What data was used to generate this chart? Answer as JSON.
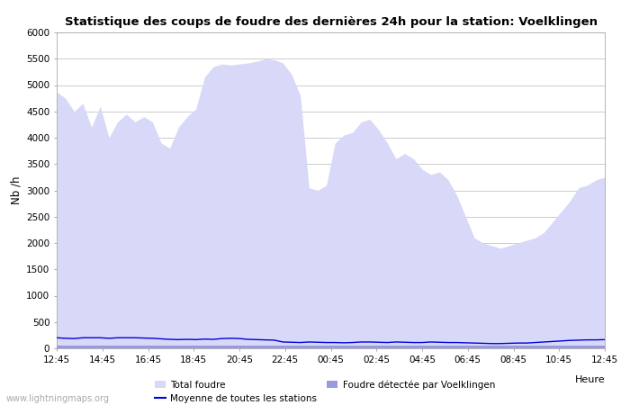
{
  "title": "Statistique des coups de foudre des dernières 24h pour la station: Voelklingen",
  "ylabel": "Nb /h",
  "xlabel": "Heure",
  "ylim": [
    0,
    6000
  ],
  "yticks": [
    0,
    500,
    1000,
    1500,
    2000,
    2500,
    3000,
    3500,
    4000,
    4500,
    5000,
    5500,
    6000
  ],
  "xtick_labels": [
    "12:45",
    "14:45",
    "16:45",
    "18:45",
    "20:45",
    "22:45",
    "00:45",
    "02:45",
    "04:45",
    "06:45",
    "08:45",
    "10:45",
    "12:45"
  ],
  "background_color": "#ffffff",
  "plot_bg_color": "#ffffff",
  "grid_color": "#cccccc",
  "fill_total_color": "#d8d8f8",
  "fill_voelk_color": "#9999dd",
  "line_mean_color": "#0000dd",
  "watermark": "www.lightningmaps.org",
  "legend_total": "Total foudre",
  "legend_mean": "Moyenne de toutes les stations",
  "legend_voelk": "Foudre détectée par Voelklingen",
  "total_foudre": [
    4870,
    4750,
    4500,
    4650,
    4200,
    4600,
    4000,
    4300,
    4450,
    4300,
    4400,
    4300,
    3900,
    3800,
    4200,
    4400,
    4550,
    5150,
    5350,
    5400,
    5380,
    5400,
    5420,
    5450,
    5500,
    5480,
    5420,
    5200,
    4800,
    3050,
    3000,
    3100,
    3900,
    4050,
    4100,
    4300,
    4350,
    4150,
    3900,
    3600,
    3700,
    3600,
    3400,
    3300,
    3350,
    3200,
    2900,
    2500,
    2100,
    2000,
    1950,
    1900,
    1950,
    2000,
    2050,
    2100,
    2200,
    2400,
    2600,
    2800,
    3050,
    3100,
    3200,
    3250
  ],
  "voelk_foudre": [
    50,
    50,
    50,
    50,
    50,
    50,
    50,
    50,
    50,
    50,
    50,
    50,
    50,
    50,
    50,
    50,
    50,
    50,
    50,
    50,
    50,
    50,
    50,
    50,
    50,
    50,
    50,
    50,
    50,
    50,
    50,
    50,
    50,
    50,
    50,
    50,
    50,
    50,
    50,
    50,
    50,
    50,
    50,
    50,
    50,
    50,
    50,
    50,
    50,
    50,
    50,
    50,
    50,
    50,
    50,
    50,
    50,
    50,
    50,
    50,
    50,
    50,
    50,
    50
  ],
  "mean_line": [
    200,
    190,
    185,
    200,
    200,
    200,
    190,
    200,
    200,
    200,
    195,
    190,
    180,
    170,
    165,
    170,
    165,
    175,
    170,
    185,
    190,
    185,
    170,
    165,
    160,
    155,
    120,
    115,
    110,
    120,
    115,
    110,
    110,
    105,
    110,
    120,
    120,
    115,
    110,
    120,
    115,
    110,
    110,
    120,
    115,
    110,
    110,
    105,
    100,
    95,
    90,
    90,
    95,
    100,
    100,
    110,
    120,
    130,
    140,
    150,
    155,
    160,
    160,
    165
  ]
}
